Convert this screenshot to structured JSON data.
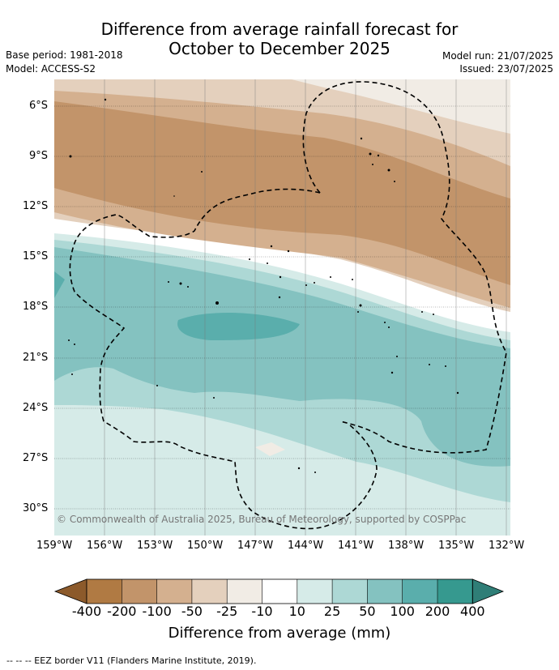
{
  "title": {
    "line1": "Difference from average rainfall forecast for",
    "line2": "October to December 2025"
  },
  "info": {
    "base_period": "Base period: 1981-2018",
    "model": "Model: ACCESS-S2",
    "model_run": "Model run: 21/07/2025",
    "issued": "Issued: 23/07/2025"
  },
  "map": {
    "lat_labels": [
      "6°S",
      "9°S",
      "12°S",
      "15°S",
      "18°S",
      "21°S",
      "24°S",
      "27°S",
      "30°S"
    ],
    "lon_labels": [
      "159°W",
      "156°W",
      "153°W",
      "150°W",
      "147°W",
      "144°W",
      "141°W",
      "138°W",
      "135°W",
      "132°W"
    ],
    "copyright": "© Commonwealth of Australia 2025, Bureau of Meteorology, supported by COSPPac"
  },
  "colorbar": {
    "labels": [
      "-400",
      "-200",
      "-100",
      "-50",
      "-25",
      "-10",
      "10",
      "25",
      "50",
      "100",
      "200",
      "400"
    ],
    "colors": [
      "#8c5a2b",
      "#b07a43",
      "#c2946a",
      "#d4b08f",
      "#e4d0bd",
      "#f1ece5",
      "#ffffff",
      "#d6ebe8",
      "#add8d5",
      "#84c2c0",
      "#5aaeac",
      "#36998f",
      "#2f7e77"
    ],
    "title": "Difference from average (mm)"
  },
  "footer": "--  --  -- EEZ border V11 (Flanders Marine Institute, 2019)."
}
